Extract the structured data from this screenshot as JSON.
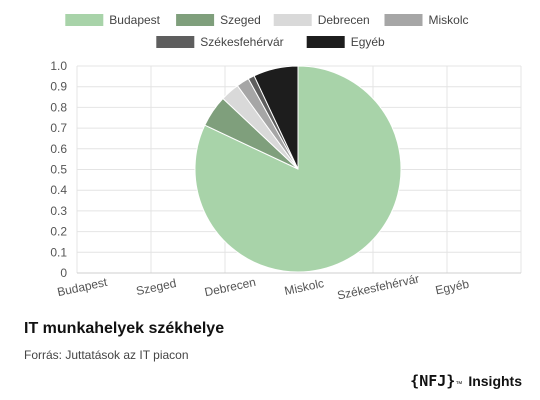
{
  "chart_data": {
    "type": "pie",
    "categories": [
      "Budapest",
      "Szeged",
      "Debrecen",
      "Miskolc",
      "Székesfehérvár",
      "Egyéb"
    ],
    "values": [
      0.82,
      0.05,
      0.03,
      0.02,
      0.01,
      0.07
    ],
    "colors": [
      "#a8d3a9",
      "#7f9f7c",
      "#d9d9d9",
      "#a6a6a6",
      "#5e5e5e",
      "#1d1d1d"
    ],
    "y_ticks": [
      "0",
      "0.1",
      "0.2",
      "0.3",
      "0.4",
      "0.5",
      "0.6",
      "0.7",
      "0.8",
      "0.9",
      "1.0"
    ],
    "ylim": [
      0,
      1
    ],
    "grid": true,
    "legend_position": "top"
  },
  "caption": {
    "title": "IT munkahelyek székhelye",
    "source": "Forrás: Juttatások az IT piacon"
  },
  "brand": {
    "logo": "{NFJ}",
    "tm": "™",
    "name": "Insights"
  }
}
